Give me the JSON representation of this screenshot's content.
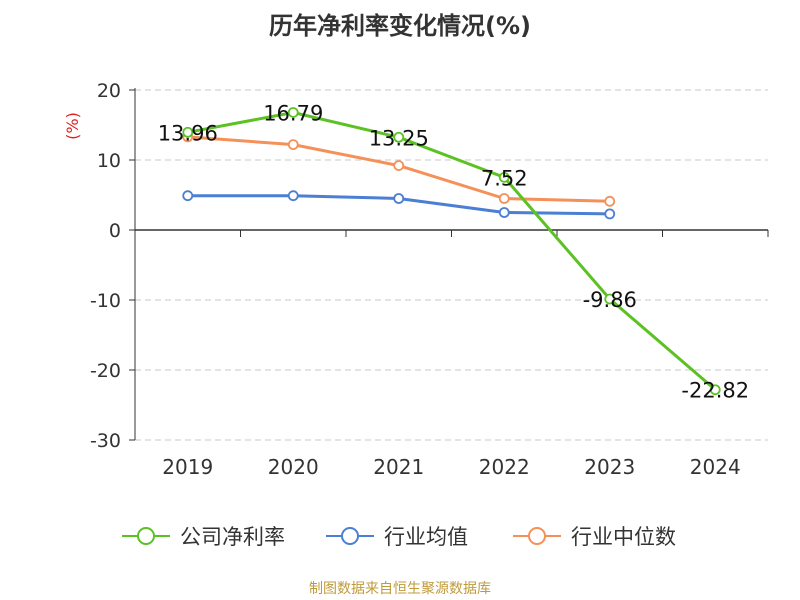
{
  "title": "历年净利率变化情况(%)",
  "footer": "制图数据来自恒生聚源数据库",
  "chart_data": {
    "type": "line",
    "categories": [
      "2019",
      "2020",
      "2021",
      "2022",
      "2023",
      "2024"
    ],
    "ylabel": "(%)",
    "ylim": [
      -30,
      20
    ],
    "yticks": [
      20,
      10,
      0,
      -10,
      -20,
      -30
    ],
    "grid": true,
    "legend_position": "bottom",
    "series": [
      {
        "name": "公司净利率",
        "color": "#5cc224",
        "values": [
          13.96,
          16.79,
          13.25,
          7.52,
          -9.86,
          -22.82
        ],
        "labels": [
          "13.96",
          "16.79",
          "13.25",
          "7.52",
          "-9.86",
          "-22.82"
        ]
      },
      {
        "name": "行业均值",
        "color": "#4a7fd4",
        "values": [
          4.9,
          4.9,
          4.5,
          2.5,
          2.3,
          null
        ]
      },
      {
        "name": "行业中位数",
        "color": "#f59058",
        "values": [
          13.3,
          12.2,
          9.2,
          4.5,
          4.1,
          null
        ]
      }
    ]
  }
}
